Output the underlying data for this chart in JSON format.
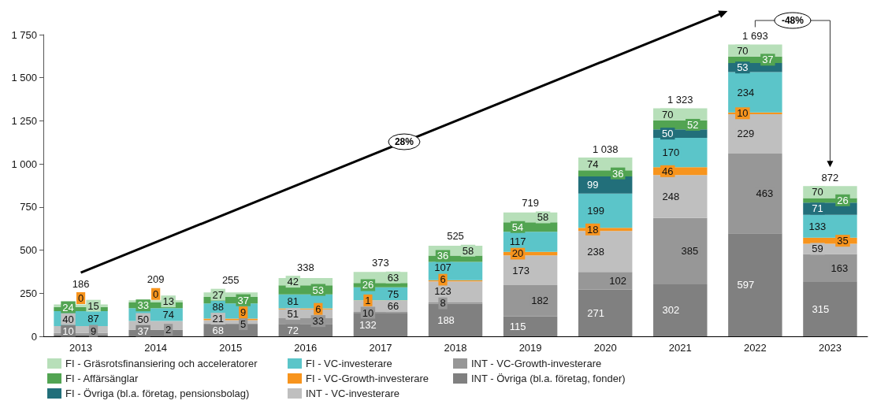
{
  "chart_data": {
    "type": "bar",
    "stacked": true,
    "categories": [
      "2013",
      "2014",
      "2015",
      "2016",
      "2017",
      "2018",
      "2019",
      "2020",
      "2021",
      "2022",
      "2023"
    ],
    "series": [
      {
        "name": "INT - Övriga (bl.a. företag, fonder)",
        "color": "#808080",
        "values": [
          10,
          37,
          68,
          72,
          132,
          188,
          115,
          271,
          302,
          597,
          315
        ]
      },
      {
        "name": "INT - VC-Growth-investerare",
        "color": "#979797",
        "values": [
          9,
          2,
          5,
          33,
          10,
          8,
          182,
          102,
          385,
          463,
          163
        ]
      },
      {
        "name": "INT - VC-investerare",
        "color": "#bfbfbf",
        "values": [
          40,
          50,
          21,
          51,
          66,
          123,
          173,
          238,
          248,
          229,
          59
        ]
      },
      {
        "name": "FI - VC-Growth-investerare",
        "color": "#f7941d",
        "values": [
          0,
          0,
          9,
          6,
          1,
          6,
          20,
          18,
          46,
          10,
          35
        ]
      },
      {
        "name": "FI - VC-investerare",
        "color": "#5bc5c9",
        "values": [
          87,
          74,
          88,
          81,
          75,
          107,
          117,
          199,
          170,
          234,
          133
        ]
      },
      {
        "name": "FI - Övriga (bl.a. företag, pensionsbolag)",
        "color": "#226f7a",
        "values": [
          null,
          null,
          null,
          null,
          null,
          null,
          null,
          99,
          50,
          53,
          71
        ]
      },
      {
        "name": "FI - Affärsänglar",
        "color": "#52a452",
        "values": [
          24,
          33,
          37,
          53,
          26,
          36,
          54,
          36,
          52,
          37,
          26
        ]
      },
      {
        "name": "FI - Gräsrotsfinansiering och acceleratorer",
        "color": "#b7dfb9",
        "values": [
          15,
          13,
          27,
          42,
          63,
          58,
          58,
          74,
          70,
          70,
          70
        ]
      }
    ],
    "totals": [
      "186",
      "209",
      "255",
      "338",
      "373",
      "525",
      "719",
      "1 038",
      "1 323",
      "1 693",
      "872"
    ],
    "data_labels": true,
    "ylim": [
      0,
      1750
    ],
    "yticks": [
      0,
      250,
      500,
      750,
      {
        "value": 1000,
        "label": "1 000"
      },
      {
        "value": 1250,
        "label": "1 250"
      },
      {
        "value": 1500,
        "label": "1 500"
      },
      {
        "value": 1750,
        "label": "1 750"
      }
    ],
    "grid": false,
    "legend": "bottom",
    "annotations": [
      "28%",
      "-48%"
    ]
  }
}
